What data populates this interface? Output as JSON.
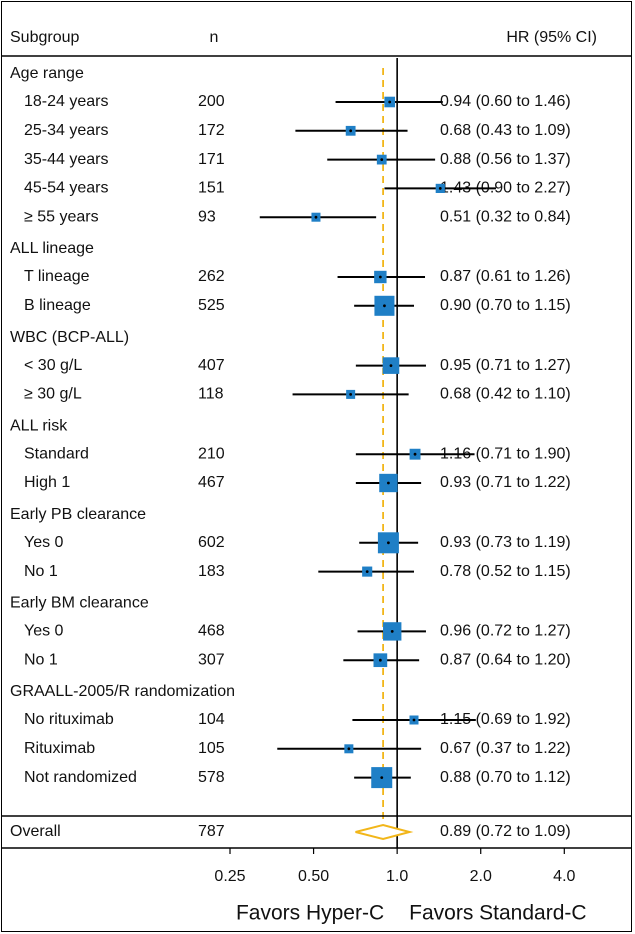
{
  "chart_data": {
    "type": "forest",
    "header": {
      "subgroup": "Subgroup",
      "n": "n",
      "hr": "HR (95% CI)"
    },
    "x_scale": "log",
    "xlim": [
      0.175,
      5.7
    ],
    "reference_line": 1.0,
    "overall_line": 0.89,
    "ticks": [
      {
        "value": 0.25,
        "label": "0.25"
      },
      {
        "value": 0.5,
        "label": "0.50"
      },
      {
        "value": 1.0,
        "label": "1.0"
      },
      {
        "value": 2.0,
        "label": "2.0"
      },
      {
        "value": 4.0,
        "label": "4.0"
      }
    ],
    "favors_left": "Favors Hyper-C",
    "favors_right": "Favors Standard-C",
    "colors": {
      "box": "#1f7fc6",
      "diamond": "#f2b619",
      "ref_dash": "#f2b619",
      "line": "#000000"
    },
    "groups": [
      {
        "name": "Age range",
        "rows": [
          {
            "label": "18-24 years",
            "n": "200",
            "hr": 0.94,
            "lo": 0.6,
            "hi": 1.46,
            "ci_text": "0.94 (0.60 to 1.46)"
          },
          {
            "label": "25-34 years",
            "n": "172",
            "hr": 0.68,
            "lo": 0.43,
            "hi": 1.09,
            "ci_text": "0.68 (0.43 to 1.09)"
          },
          {
            "label": "35-44 years",
            "n": "171",
            "hr": 0.88,
            "lo": 0.56,
            "hi": 1.37,
            "ci_text": "0.88 (0.56 to 1.37)"
          },
          {
            "label": "45-54 years",
            "n": "151",
            "hr": 1.43,
            "lo": 0.9,
            "hi": 2.27,
            "ci_text": "1.43 (0.90 to 2.27)"
          },
          {
            "label": "≥ 55 years",
            "n": "93",
            "hr": 0.51,
            "lo": 0.32,
            "hi": 0.84,
            "ci_text": "0.51 (0.32 to 0.84)"
          }
        ]
      },
      {
        "name": "ALL lineage",
        "rows": [
          {
            "label": "T lineage",
            "n": "262",
            "hr": 0.87,
            "lo": 0.61,
            "hi": 1.26,
            "ci_text": "0.87 (0.61 to 1.26)"
          },
          {
            "label": "B lineage",
            "n": "525",
            "hr": 0.9,
            "lo": 0.7,
            "hi": 1.15,
            "ci_text": "0.90 (0.70 to 1.15)"
          }
        ]
      },
      {
        "name": "WBC (BCP-ALL)",
        "rows": [
          {
            "label": "< 30 g/L",
            "n": "407",
            "hr": 0.95,
            "lo": 0.71,
            "hi": 1.27,
            "ci_text": "0.95 (0.71 to 1.27)"
          },
          {
            "label": "≥ 30 g/L",
            "n": "118",
            "hr": 0.68,
            "lo": 0.42,
            "hi": 1.1,
            "ci_text": "0.68 (0.42 to 1.10)"
          }
        ]
      },
      {
        "name": "ALL risk",
        "rows": [
          {
            "label": "Standard",
            "n": "210",
            "hr": 1.16,
            "lo": 0.71,
            "hi": 1.9,
            "ci_text": "1.16 (0.71 to 1.90)"
          },
          {
            "label": "High 1",
            "n": "467",
            "hr": 0.93,
            "lo": 0.71,
            "hi": 1.22,
            "ci_text": "0.93 (0.71 to 1.22)"
          }
        ]
      },
      {
        "name": "Early PB clearance",
        "rows": [
          {
            "label": "Yes 0",
            "n": "602",
            "hr": 0.93,
            "lo": 0.73,
            "hi": 1.19,
            "ci_text": "0.93 (0.73 to 1.19)"
          },
          {
            "label": "No 1",
            "n": "183",
            "hr": 0.78,
            "lo": 0.52,
            "hi": 1.15,
            "ci_text": "0.78 (0.52 to 1.15)"
          }
        ]
      },
      {
        "name": "Early BM clearance",
        "rows": [
          {
            "label": "Yes 0",
            "n": "468",
            "hr": 0.96,
            "lo": 0.72,
            "hi": 1.27,
            "ci_text": "0.96 (0.72 to 1.27)"
          },
          {
            "label": "No 1",
            "n": "307",
            "hr": 0.87,
            "lo": 0.64,
            "hi": 1.2,
            "ci_text": "0.87 (0.64 to 1.20)"
          }
        ]
      },
      {
        "name": "GRAALL-2005/R randomization",
        "rows": [
          {
            "label": "No rituximab",
            "n": "104",
            "hr": 1.15,
            "lo": 0.69,
            "hi": 1.92,
            "ci_text": "1.15 (0.69 to 1.92)"
          },
          {
            "label": "Rituximab",
            "n": "105",
            "hr": 0.67,
            "lo": 0.37,
            "hi": 1.22,
            "ci_text": "0.67 (0.37 to 1.22)"
          },
          {
            "label": "Not randomized",
            "n": "578",
            "hr": 0.88,
            "lo": 0.7,
            "hi": 1.12,
            "ci_text": "0.88 (0.70 to 1.12)"
          }
        ]
      }
    ],
    "overall": {
      "label": "Overall",
      "n": "787",
      "hr": 0.89,
      "lo": 0.72,
      "hi": 1.09,
      "ci_text": "0.89 (0.72 to 1.09)"
    }
  }
}
